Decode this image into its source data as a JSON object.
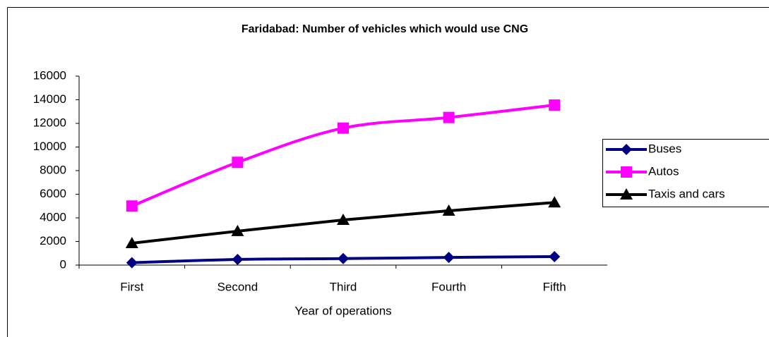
{
  "chart_data": {
    "type": "line",
    "title": "Faridabad: Number of vehicles which would use CNG",
    "x_label": "Year of operations",
    "categories": [
      "First",
      "Second",
      "Third",
      "Fourth",
      "Fifth"
    ],
    "series": [
      {
        "name": "Buses",
        "color": "#000080",
        "marker": "diamond",
        "values": [
          200,
          480,
          550,
          650,
          720
        ]
      },
      {
        "name": "Autos",
        "color": "#ff00ff",
        "marker": "square",
        "values": [
          5000,
          8700,
          11600,
          12500,
          13550
        ]
      },
      {
        "name": "Taxis and cars",
        "color": "#000000",
        "marker": "triangle",
        "values": [
          1850,
          2870,
          3820,
          4600,
          5300
        ]
      }
    ],
    "ylim": [
      0,
      16000
    ],
    "yticks": [
      0,
      2000,
      4000,
      6000,
      8000,
      10000,
      12000,
      14000,
      16000
    ],
    "grid": false,
    "smooth": true,
    "legend": "right"
  }
}
